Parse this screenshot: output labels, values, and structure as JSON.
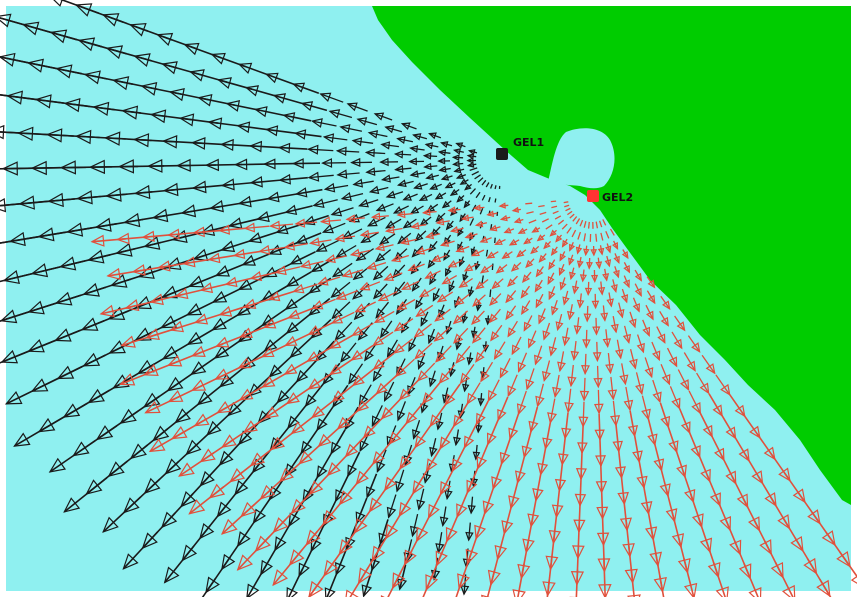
{
  "colors": {
    "sea": "#8ff0f0",
    "land": "#00cc00",
    "frame": "#ffffff",
    "series_black": "#1a1a1a",
    "series_red": "#e0503c"
  },
  "stations": [
    {
      "id": "gel1",
      "label": "GEL1",
      "color": "#1a1a1a"
    },
    {
      "id": "gel2",
      "label": "GEL2",
      "color": "#ff3333"
    }
  ],
  "fields": [
    {
      "id": "black",
      "color": "#1a1a1a",
      "source": "gel1",
      "spread_deg": [
        95,
        200
      ],
      "max_len": 62
    },
    {
      "id": "red",
      "color": "#e0503c",
      "source": "gel2",
      "spread_deg": [
        55,
        175
      ],
      "max_len": 50
    }
  ]
}
